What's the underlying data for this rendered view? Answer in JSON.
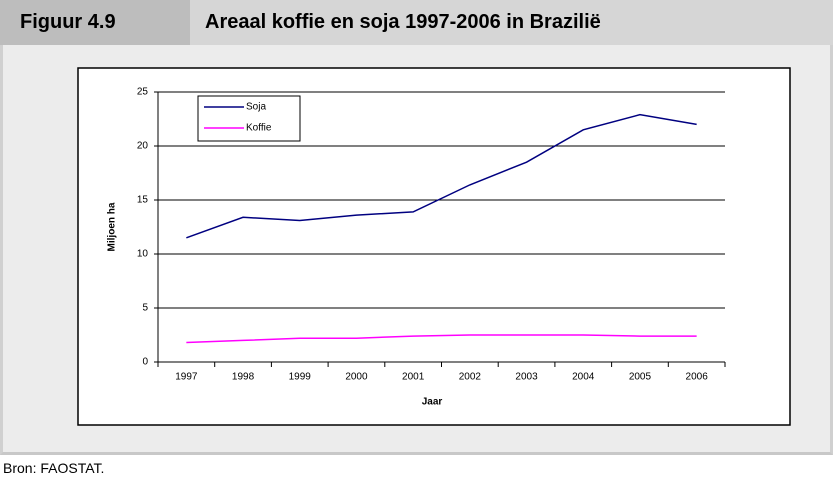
{
  "figure_label": "Figuur 4.9",
  "source": "Bron: FAOSTAT.",
  "chart_data": {
    "type": "line",
    "title": "Areaal koffie en soja 1997-2006 in Brazilië",
    "categories": [
      "1997",
      "1998",
      "1999",
      "2000",
      "2001",
      "2002",
      "2003",
      "2004",
      "2005",
      "2006"
    ],
    "series": [
      {
        "name": "Soja",
        "color": "#000080",
        "values": [
          11.5,
          13.4,
          13.1,
          13.6,
          13.9,
          16.4,
          18.5,
          21.5,
          22.9,
          22.0
        ]
      },
      {
        "name": "Koffie",
        "color": "#ff00ff",
        "values": [
          1.8,
          2.0,
          2.2,
          2.2,
          2.4,
          2.5,
          2.5,
          2.5,
          2.4,
          2.4
        ]
      }
    ],
    "ylim": [
      0,
      25
    ],
    "yticks": [
      0,
      5,
      10,
      15,
      20,
      25
    ],
    "grid": true,
    "xlabel": "Jaar",
    "ylabel": "Miljoen ha",
    "legend": "top-left"
  }
}
